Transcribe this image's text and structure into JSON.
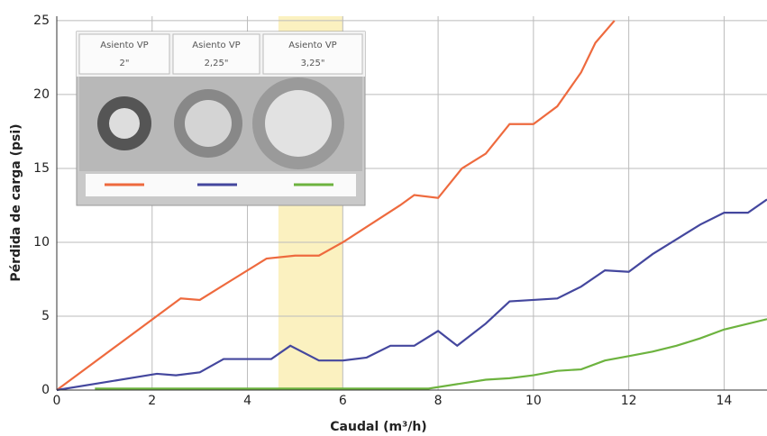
{
  "chart_data": {
    "type": "line",
    "x_label": "Caudal (m³/h)",
    "y_label": "Pérdida de carga (psi)",
    "xlim": [
      0,
      14.9
    ],
    "ylim": [
      0,
      25.3
    ],
    "xticks": [
      0,
      2,
      4,
      6,
      8,
      10,
      12,
      14
    ],
    "yticks": [
      0,
      5,
      10,
      15,
      20,
      25
    ],
    "grid": true,
    "highlight_x": [
      4.65,
      6.0
    ],
    "legend_title": "Asiento VP",
    "series": [
      {
        "name": "2\"",
        "color": "#ee6a3e",
        "x": [
          0,
          2.6,
          3,
          4.4,
          5,
          5.5,
          6,
          7.2,
          7.5,
          8,
          8.5,
          9,
          9.5,
          10,
          10.5,
          11,
          11.3,
          11.7
        ],
        "values": [
          0,
          6.2,
          6.1,
          8.9,
          9.1,
          9.1,
          10,
          12.5,
          13.2,
          13,
          15,
          16,
          18,
          18,
          19.2,
          21.5,
          23.5,
          25
        ]
      },
      {
        "name": "2,25\"",
        "color": "#44479e",
        "x": [
          0,
          2.1,
          2.5,
          3,
          3.5,
          4,
          4.5,
          4.9,
          5.5,
          6,
          6.5,
          7,
          7.5,
          8,
          8.4,
          9,
          9.5,
          10,
          10.5,
          11,
          11.5,
          12,
          12.5,
          13,
          13.5,
          14,
          14.5,
          14.9
        ],
        "values": [
          0,
          1.1,
          1,
          1.2,
          2.1,
          2.1,
          2.1,
          3,
          2,
          2,
          2.2,
          3,
          3,
          4,
          3,
          4.5,
          6,
          6.1,
          6.2,
          7,
          8.1,
          8,
          9.2,
          10.2,
          11.2,
          12,
          12,
          12.9
        ]
      },
      {
        "name": "3,25\"",
        "color": "#6db33f",
        "x": [
          0.8,
          7.8,
          9,
          9.5,
          10,
          10.5,
          11,
          11.5,
          12,
          12.5,
          13,
          13.5,
          14,
          14.9
        ],
        "values": [
          0.1,
          0.1,
          0.7,
          0.8,
          1,
          1.3,
          1.4,
          2,
          2.3,
          2.6,
          3,
          3.5,
          4.1,
          4.8
        ]
      }
    ]
  }
}
